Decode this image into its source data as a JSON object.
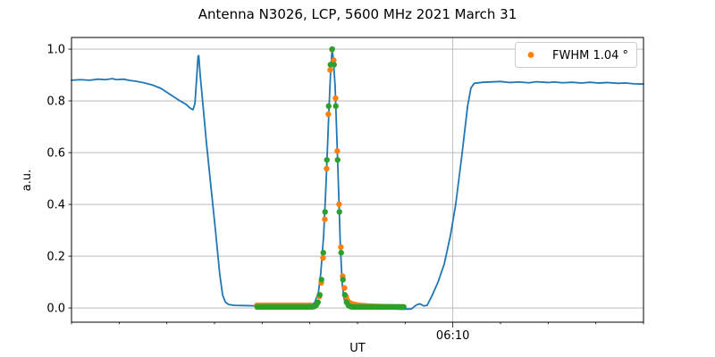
{
  "chart_data": {
    "type": "line",
    "title": "Antenna N3026, LCP, 5600 MHz 2021 March 31",
    "xlabel": "UT",
    "ylabel": "a.u.",
    "x_axis": {
      "hour_prefix": "06",
      "start_minute": 2,
      "end_minute": 14,
      "minor_tick_every_minutes": 1,
      "major_ticks": [
        {
          "minute": 10,
          "label": "06:10"
        }
      ],
      "grid_on_major": true
    },
    "y_axis": {
      "lim": [
        -0.055,
        1.045
      ],
      "ticks": [
        0.0,
        0.2,
        0.4,
        0.6,
        0.8,
        1.0
      ],
      "tick_labels": [
        "0.0",
        "0.2",
        "0.4",
        "0.6",
        "0.8",
        "1.0"
      ],
      "grid": true
    },
    "legend": {
      "label": "FWHM 1.04 °",
      "marker_color": "#ff7f0e",
      "position": "upper right"
    },
    "grid_color": "#b0b0b0",
    "series": [
      {
        "name": "drift-scan-signal",
        "type": "line",
        "color": "#1f77b4",
        "points_t_minutes_value": [
          [
            2.0,
            0.88
          ],
          [
            2.19,
            0.882
          ],
          [
            2.38,
            0.88
          ],
          [
            2.56,
            0.884
          ],
          [
            2.71,
            0.882
          ],
          [
            2.86,
            0.886
          ],
          [
            2.94,
            0.882
          ],
          [
            3.09,
            0.884
          ],
          [
            3.22,
            0.879
          ],
          [
            3.35,
            0.876
          ],
          [
            3.5,
            0.871
          ],
          [
            3.69,
            0.862
          ],
          [
            3.88,
            0.848
          ],
          [
            4.06,
            0.826
          ],
          [
            4.25,
            0.803
          ],
          [
            4.4,
            0.787
          ],
          [
            4.49,
            0.772
          ],
          [
            4.55,
            0.766
          ],
          [
            4.59,
            0.79
          ],
          [
            4.63,
            0.9
          ],
          [
            4.655,
            0.972
          ],
          [
            4.67,
            0.975
          ],
          [
            4.7,
            0.9
          ],
          [
            4.76,
            0.78
          ],
          [
            4.83,
            0.64
          ],
          [
            4.93,
            0.46
          ],
          [
            5.02,
            0.3
          ],
          [
            5.11,
            0.13
          ],
          [
            5.17,
            0.05
          ],
          [
            5.23,
            0.022
          ],
          [
            5.3,
            0.013
          ],
          [
            5.41,
            0.01
          ],
          [
            5.66,
            0.009
          ],
          [
            5.94,
            0.008
          ],
          [
            6.31,
            0.007
          ],
          [
            6.69,
            0.006
          ],
          [
            6.97,
            0.007
          ],
          [
            7.1,
            0.02
          ],
          [
            7.18,
            0.06
          ],
          [
            7.23,
            0.135
          ],
          [
            7.29,
            0.28
          ],
          [
            7.34,
            0.48
          ],
          [
            7.4,
            0.76
          ],
          [
            7.44,
            0.93
          ],
          [
            7.47,
            1.0
          ],
          [
            7.49,
            0.965
          ],
          [
            7.53,
            0.86
          ],
          [
            7.57,
            0.64
          ],
          [
            7.61,
            0.42
          ],
          [
            7.64,
            0.24
          ],
          [
            7.68,
            0.09
          ],
          [
            7.72,
            0.035
          ],
          [
            7.76,
            0.015
          ],
          [
            7.85,
            0.006
          ],
          [
            8.09,
            0.003
          ],
          [
            8.38,
            0.0
          ],
          [
            8.66,
            -0.003
          ],
          [
            8.94,
            -0.005
          ],
          [
            9.13,
            -0.004
          ],
          [
            9.24,
            0.012
          ],
          [
            9.31,
            0.016
          ],
          [
            9.39,
            0.008
          ],
          [
            9.46,
            0.01
          ],
          [
            9.56,
            0.046
          ],
          [
            9.69,
            0.1
          ],
          [
            9.82,
            0.17
          ],
          [
            9.95,
            0.28
          ],
          [
            10.06,
            0.4
          ],
          [
            10.19,
            0.59
          ],
          [
            10.31,
            0.78
          ],
          [
            10.38,
            0.85
          ],
          [
            10.45,
            0.868
          ],
          [
            10.63,
            0.872
          ],
          [
            11.0,
            0.875
          ],
          [
            11.2,
            0.871
          ],
          [
            11.38,
            0.873
          ],
          [
            11.6,
            0.87
          ],
          [
            11.75,
            0.874
          ],
          [
            12.0,
            0.871
          ],
          [
            12.13,
            0.873
          ],
          [
            12.3,
            0.87
          ],
          [
            12.5,
            0.872
          ],
          [
            12.7,
            0.869
          ],
          [
            12.88,
            0.872
          ],
          [
            13.05,
            0.869
          ],
          [
            13.25,
            0.871
          ],
          [
            13.45,
            0.868
          ],
          [
            13.63,
            0.869
          ],
          [
            13.8,
            0.866
          ],
          [
            14.0,
            0.865
          ]
        ]
      },
      {
        "name": "scan-cut-data",
        "type": "scatter",
        "color": "#ff7f0e",
        "in_legend": true,
        "sampling": {
          "t_start": 5.895,
          "t_step": 0.0375,
          "count": 83,
          "t_offset": -0.006
        },
        "gaussian": {
          "center": 7.47,
          "fwhm": 0.25,
          "amplitude": 0.996,
          "baseline": 0.004
        },
        "left_lift": {
          "value": 0.006,
          "t_until": 7.05
        },
        "right_tail": {
          "amp": 0.02,
          "t_from": 7.72,
          "decay": 0.28
        }
      },
      {
        "name": "gaussian-fit",
        "type": "scatter",
        "color": "#2ca02c",
        "in_legend": false,
        "sampling": {
          "t_start": 5.895,
          "t_step": 0.0375,
          "count": 83,
          "t_offset": 0
        },
        "gaussian": {
          "center": 7.47,
          "fwhm": 0.25,
          "amplitude": 0.996,
          "baseline": 0.004
        }
      }
    ]
  }
}
